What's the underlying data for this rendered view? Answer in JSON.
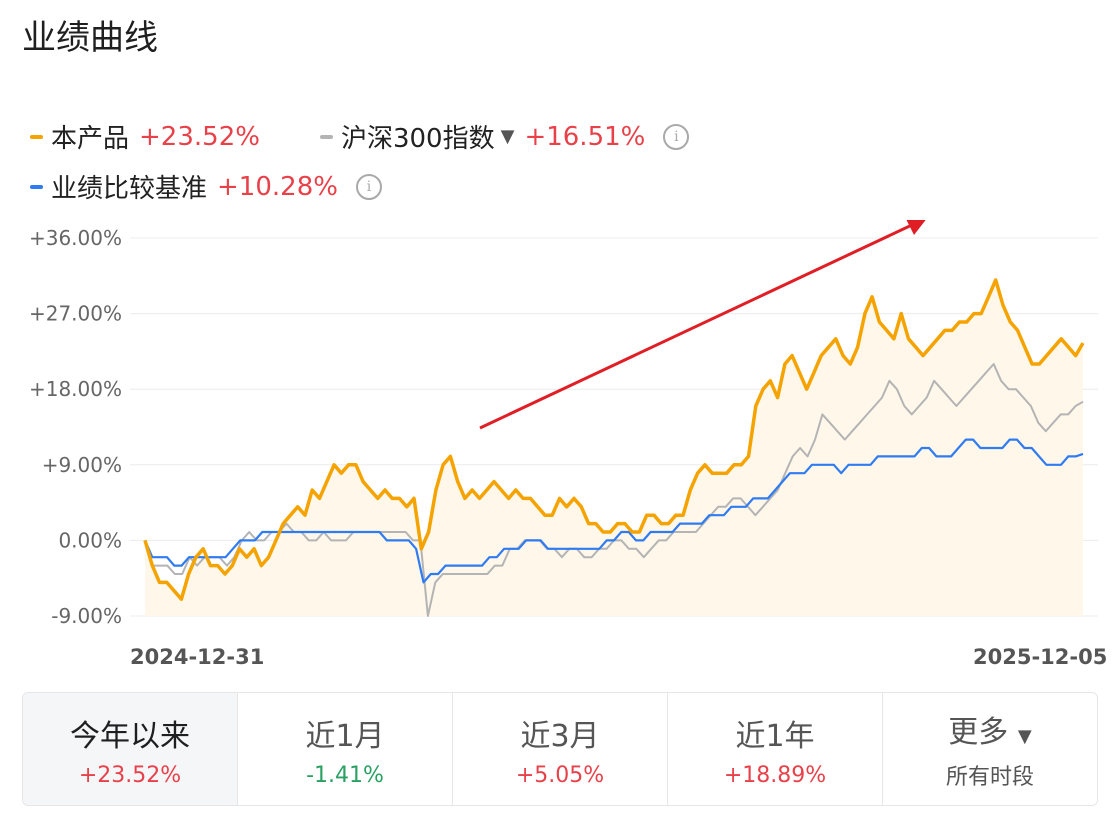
{
  "title": "业绩曲线",
  "legend": {
    "product": {
      "label": "本产品",
      "value": "+23.52%",
      "color": "#f5a300"
    },
    "index": {
      "label": "沪深300指数",
      "value": "+16.51%",
      "color": "#b4b4b4",
      "icon": "caret-down-icon"
    },
    "benchmark": {
      "label": "业绩比较基准",
      "value": "+10.28%",
      "color": "#2f7bf2"
    }
  },
  "chart_data": {
    "type": "line",
    "y_tick_labels": [
      "+36.00%",
      "+27.00%",
      "+18.00%",
      "+9.00%",
      "0.00%",
      "-9.00%"
    ],
    "ylim": [
      -9,
      36
    ],
    "x_labels": [
      "2024-12-31",
      "2025-12-05"
    ],
    "grid": true,
    "series": [
      {
        "name": "本产品",
        "color": "#f5a300",
        "values": [
          0,
          -3,
          -5,
          -5,
          -6,
          -7,
          -4,
          -2,
          -1,
          -3,
          -3,
          -4,
          -3,
          -1,
          -2,
          -1,
          -3,
          -2,
          0,
          2,
          3,
          4,
          3,
          6,
          5,
          7,
          9,
          8,
          9,
          9,
          7,
          6,
          5,
          6,
          5,
          5,
          4,
          5,
          -1,
          1,
          6,
          9,
          10,
          7,
          5,
          6,
          5,
          6,
          7,
          6,
          5,
          6,
          5,
          5,
          4,
          3,
          3,
          5,
          4,
          5,
          4,
          2,
          2,
          1,
          1,
          2,
          2,
          1,
          1,
          3,
          3,
          2,
          2,
          3,
          3,
          6,
          8,
          9,
          8,
          8,
          8,
          9,
          9,
          10,
          16,
          18,
          19,
          17,
          21,
          22,
          20,
          18,
          20,
          22,
          23,
          24,
          22,
          21,
          23,
          27,
          29,
          26,
          25,
          24,
          27,
          24,
          23,
          22,
          23,
          24,
          25,
          25,
          26,
          26,
          27,
          27,
          29,
          31,
          28,
          26,
          25,
          23,
          21,
          21,
          22,
          23,
          24,
          23,
          22,
          23.5
        ]
      },
      {
        "name": "沪深300指数",
        "color": "#b4b4b4",
        "values": [
          0,
          -3,
          -3,
          -3,
          -4,
          -4,
          -2,
          -3,
          -2,
          -2,
          -2,
          -3,
          -2,
          0,
          1,
          0,
          0,
          1,
          1,
          2,
          1,
          1,
          0,
          0,
          1,
          0,
          0,
          0,
          1,
          1,
          1,
          1,
          1,
          1,
          1,
          1,
          0,
          0,
          -9,
          -5,
          -4,
          -4,
          -4,
          -4,
          -4,
          -4,
          -4,
          -3,
          -3,
          -1,
          -1,
          0,
          0,
          0,
          -1,
          -1,
          -2,
          -1,
          -1,
          -2,
          -2,
          -1,
          -1,
          0,
          0,
          -1,
          -1,
          -2,
          -1,
          0,
          0,
          1,
          1,
          1,
          1,
          2,
          3,
          4,
          4,
          5,
          5,
          4,
          3,
          4,
          5,
          6,
          8,
          10,
          11,
          10,
          12,
          15,
          14,
          13,
          12,
          13,
          14,
          15,
          16,
          17,
          19,
          18,
          16,
          15,
          16,
          17,
          19,
          18,
          17,
          16,
          17,
          18,
          19,
          20,
          21,
          19,
          18,
          18,
          17,
          16,
          14,
          13,
          14,
          15,
          15,
          16,
          16.5
        ]
      },
      {
        "name": "业绩比较基准",
        "color": "#2f7bf2",
        "values": [
          0,
          -2,
          -2,
          -2,
          -3,
          -3,
          -2,
          -2,
          -2,
          -2,
          -2,
          -2,
          -1,
          0,
          0,
          0,
          1,
          1,
          1,
          1,
          1,
          1,
          1,
          1,
          1,
          1,
          1,
          1,
          1,
          1,
          1,
          1,
          1,
          0,
          0,
          0,
          0,
          -1,
          -5,
          -4,
          -4,
          -3,
          -3,
          -3,
          -3,
          -3,
          -3,
          -2,
          -2,
          -1,
          -1,
          -1,
          0,
          0,
          0,
          -1,
          -1,
          -1,
          -1,
          -1,
          -1,
          -1,
          -1,
          0,
          0,
          1,
          1,
          0,
          0,
          1,
          1,
          1,
          1,
          2,
          2,
          2,
          2,
          3,
          3,
          3,
          4,
          4,
          4,
          5,
          5,
          5,
          6,
          7,
          8,
          8,
          8,
          9,
          9,
          9,
          9,
          8,
          9,
          9,
          9,
          9,
          10,
          10,
          10,
          10,
          10,
          10,
          11,
          11,
          10,
          10,
          10,
          11,
          12,
          12,
          11,
          11,
          11,
          11,
          12,
          12,
          11,
          11,
          10,
          9,
          9,
          9,
          10,
          10,
          10.3
        ]
      }
    ],
    "shaded_series": "本产品",
    "annotation": "red-arrow-up-right"
  },
  "tabs": [
    {
      "label": "今年以来",
      "value": "+23.52%",
      "tone": "pos",
      "active": true
    },
    {
      "label": "近1月",
      "value": "-1.41%",
      "tone": "neg"
    },
    {
      "label": "近3月",
      "value": "+5.05%",
      "tone": "pos"
    },
    {
      "label": "近1年",
      "value": "+18.89%",
      "tone": "pos"
    },
    {
      "label": "更多",
      "sub": "所有时段",
      "icon": "caret-down-icon"
    }
  ]
}
